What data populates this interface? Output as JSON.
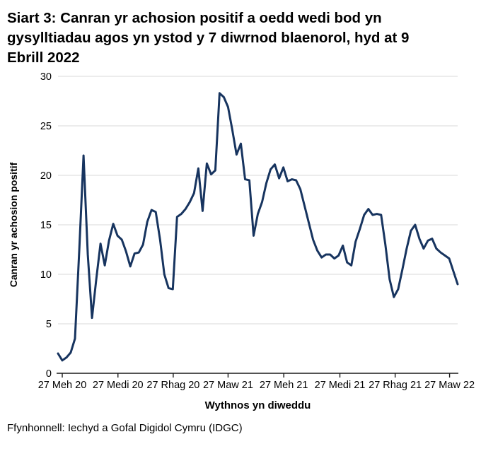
{
  "page": {
    "title": "Siart 3: Canran yr achosion positif a oedd wedi bod yn gysylltiadau agos yn ystod y 7 diwrnod blaenorol, hyd at 9 Ebrill 2022",
    "source": "Ffynhonnell: Iechyd a Gofal Digidol Cymru (IDGC)"
  },
  "chart_data": {
    "type": "line",
    "title": "Siart 3: Canran yr achosion positif a oedd wedi bod yn gysylltiadau agos yn ystod y 7 diwrnod blaenorol, hyd at 9 Ebrill 2022",
    "xlabel": "Wythnos yn diweddu",
    "ylabel": "Canran yr achosion positif",
    "ylim": [
      0,
      30
    ],
    "yticks": [
      0,
      5,
      10,
      15,
      20,
      25,
      30
    ],
    "grid": "horizontal",
    "legend": "none",
    "line_color": "#17345f",
    "gridline_color": "#d9d9d9",
    "axis_color": "#1a1a1a",
    "text_color": "#000000",
    "x_ticks": [
      {
        "label": "27 Meh 20",
        "week": 1.0
      },
      {
        "label": "27 Medi 20",
        "week": 14.1
      },
      {
        "label": "27 Rhag 20",
        "week": 27.1
      },
      {
        "label": "27 Maw 21",
        "week": 40.0
      },
      {
        "label": "27 Meh 21",
        "week": 53.1
      },
      {
        "label": "27 Medi 21",
        "week": 66.3
      },
      {
        "label": "27 Rhag 21",
        "week": 79.3
      },
      {
        "label": "27 Maw 22",
        "week": 92.1
      }
    ],
    "series": [
      {
        "name": "Canran yr achosion positif",
        "frequency": "weekly",
        "start_date": "2020-06-20",
        "end_date": "2022-04-09",
        "values": [
          2.0,
          1.3,
          1.6,
          2.1,
          3.5,
          12.5,
          22.0,
          12.0,
          5.6,
          9.5,
          13.1,
          10.9,
          13.4,
          15.1,
          13.9,
          13.5,
          12.3,
          10.8,
          12.1,
          12.2,
          13.0,
          15.3,
          16.5,
          16.3,
          13.5,
          10.0,
          8.6,
          8.5,
          15.8,
          16.1,
          16.6,
          17.3,
          18.2,
          20.7,
          16.4,
          21.2,
          20.1,
          20.5,
          28.3,
          27.9,
          26.9,
          24.6,
          22.1,
          23.2,
          19.6,
          19.5,
          13.9,
          16.1,
          17.3,
          19.2,
          20.6,
          21.1,
          19.7,
          20.8,
          19.4,
          19.6,
          19.5,
          18.6,
          16.9,
          15.2,
          13.5,
          12.4,
          11.7,
          12.0,
          12.0,
          11.6,
          11.9,
          12.9,
          11.2,
          10.9,
          13.3,
          14.6,
          16.0,
          16.6,
          16.0,
          16.1,
          16.0,
          13.0,
          9.5,
          7.7,
          8.5,
          10.5,
          12.6,
          14.4,
          15.0,
          13.6,
          12.6,
          13.4,
          13.6,
          12.6,
          12.2,
          11.9,
          11.6,
          10.3,
          9.0
        ]
      }
    ]
  }
}
